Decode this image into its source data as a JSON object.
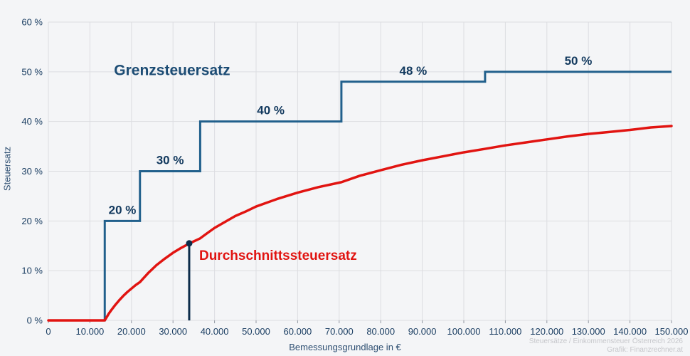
{
  "attribution": {
    "line1": "Steuersätze / Einkommensteuer Österreich 2026",
    "line2": "Grafik: Finanzrechner.at"
  },
  "chart_data": {
    "type": "line",
    "title": "",
    "xlabel": "Bemessungsgrundlage in €",
    "ylabel": "Steuersatz",
    "xlim": [
      0,
      150000
    ],
    "ylim": [
      0,
      60
    ],
    "grid": true,
    "legend_position": "inline-labels",
    "colors": {
      "background": "#f4f5f7",
      "grid": "#dcdde1",
      "tick_mark": "#9298a2",
      "axis_text": "#1c3f63",
      "marginal_line": "#21608c",
      "marginal_label_text": "#12395e",
      "marginal_title_text": "#1c4c74",
      "average_line": "#e11411",
      "marker": "#0d2d4b"
    },
    "x_ticks": [
      0,
      10000,
      20000,
      30000,
      40000,
      50000,
      60000,
      70000,
      80000,
      90000,
      100000,
      110000,
      120000,
      130000,
      140000,
      150000
    ],
    "x_tick_labels": [
      "0",
      "10.000",
      "20.000",
      "30.000",
      "40.000",
      "50.000",
      "60.000",
      "70.000",
      "80.000",
      "90.000",
      "100.000",
      "110.000",
      "120.000",
      "130.000",
      "140.000",
      "150.000"
    ],
    "y_ticks": [
      0,
      10,
      20,
      30,
      40,
      50,
      60
    ],
    "y_tick_labels": [
      "0 %",
      "10 %",
      "20 %",
      "30 %",
      "40 %",
      "50 %",
      "60 %"
    ],
    "series": [
      {
        "name": "Grenzsteuersatz",
        "style": "step",
        "brackets": [
          {
            "from": 0,
            "to": 13571,
            "rate": 0,
            "label": ""
          },
          {
            "from": 13571,
            "to": 22045,
            "rate": 20,
            "label": "20 %"
          },
          {
            "from": 22045,
            "to": 36543,
            "rate": 30,
            "label": "30 %"
          },
          {
            "from": 36543,
            "to": 70532,
            "rate": 40,
            "label": "40 %"
          },
          {
            "from": 70532,
            "to": 105120,
            "rate": 48,
            "label": "48 %"
          },
          {
            "from": 105120,
            "to": 150000,
            "rate": 50,
            "label": "50 %"
          }
        ],
        "curve_label": {
          "text": "Grenzsteuersatz",
          "x": 15800,
          "y": 49.3
        }
      },
      {
        "name": "Durchschnittssteuersatz",
        "style": "line",
        "points": [
          [
            0,
            0
          ],
          [
            13571,
            0
          ],
          [
            14000,
            0.6
          ],
          [
            14500,
            1.3
          ],
          [
            15000,
            1.9
          ],
          [
            16000,
            3.0
          ],
          [
            17000,
            4.0
          ],
          [
            18000,
            4.9
          ],
          [
            19000,
            5.7
          ],
          [
            20000,
            6.4
          ],
          [
            21000,
            7.1
          ],
          [
            22045,
            7.7
          ],
          [
            24000,
            9.5
          ],
          [
            26000,
            11.1
          ],
          [
            28000,
            12.4
          ],
          [
            30000,
            13.6
          ],
          [
            32000,
            14.6
          ],
          [
            34000,
            15.5
          ],
          [
            36543,
            16.5
          ],
          [
            38000,
            17.4
          ],
          [
            40000,
            18.6
          ],
          [
            42500,
            19.8
          ],
          [
            45000,
            21.0
          ],
          [
            47500,
            21.9
          ],
          [
            50000,
            22.9
          ],
          [
            55000,
            24.4
          ],
          [
            60000,
            25.7
          ],
          [
            65000,
            26.8
          ],
          [
            70532,
            27.8
          ],
          [
            75000,
            29.1
          ],
          [
            80000,
            30.2
          ],
          [
            85000,
            31.3
          ],
          [
            90000,
            32.2
          ],
          [
            95000,
            33.0
          ],
          [
            100000,
            33.8
          ],
          [
            105120,
            34.5
          ],
          [
            110000,
            35.2
          ],
          [
            115000,
            35.8
          ],
          [
            120000,
            36.4
          ],
          [
            125000,
            37.0
          ],
          [
            130000,
            37.5
          ],
          [
            135000,
            37.9
          ],
          [
            140000,
            38.3
          ],
          [
            145000,
            38.8
          ],
          [
            150000,
            39.1
          ]
        ],
        "curve_label": {
          "text": "Durchschnittssteuersatz",
          "x": 36300,
          "y": 12.2
        }
      }
    ],
    "marker": {
      "x": 33900,
      "y": 15.5
    }
  }
}
